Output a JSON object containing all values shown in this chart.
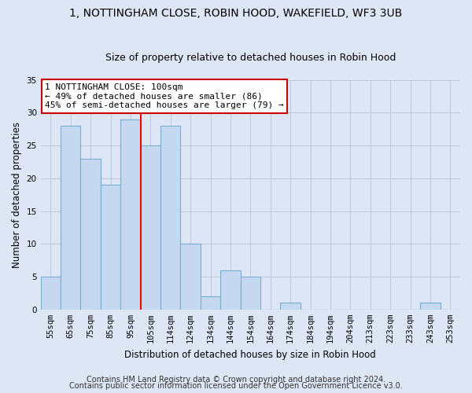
{
  "title": "1, NOTTINGHAM CLOSE, ROBIN HOOD, WAKEFIELD, WF3 3UB",
  "subtitle": "Size of property relative to detached houses in Robin Hood",
  "xlabel": "Distribution of detached houses by size in Robin Hood",
  "ylabel": "Number of detached properties",
  "categories": [
    "55sqm",
    "65sqm",
    "75sqm",
    "85sqm",
    "95sqm",
    "105sqm",
    "114sqm",
    "124sqm",
    "134sqm",
    "144sqm",
    "154sqm",
    "164sqm",
    "174sqm",
    "184sqm",
    "194sqm",
    "204sqm",
    "213sqm",
    "223sqm",
    "233sqm",
    "243sqm",
    "253sqm"
  ],
  "values": [
    5,
    28,
    23,
    19,
    29,
    25,
    28,
    10,
    2,
    6,
    5,
    0,
    1,
    0,
    0,
    0,
    0,
    0,
    0,
    1,
    0
  ],
  "bar_color": "#c5d8f0",
  "bar_edge_color": "#7aadd4",
  "red_line_x": 4.5,
  "annotation_text": "1 NOTTINGHAM CLOSE: 100sqm\n← 49% of detached houses are smaller (86)\n45% of semi-detached houses are larger (79) →",
  "annotation_box_color": "#ffffff",
  "annotation_box_edge": "#cc0000",
  "ylim": [
    0,
    35
  ],
  "yticks": [
    0,
    5,
    10,
    15,
    20,
    25,
    30,
    35
  ],
  "footer1": "Contains HM Land Registry data © Crown copyright and database right 2024.",
  "footer2": "Contains public sector information licensed under the Open Government Licence v3.0.",
  "fig_background_color": "#dce6f5",
  "plot_background": "#dce6f5",
  "grid_color": "#b0bece",
  "title_fontsize": 10,
  "subtitle_fontsize": 9,
  "axis_label_fontsize": 8.5,
  "tick_fontsize": 7.5,
  "footer_fontsize": 7,
  "annotation_fontsize": 8
}
